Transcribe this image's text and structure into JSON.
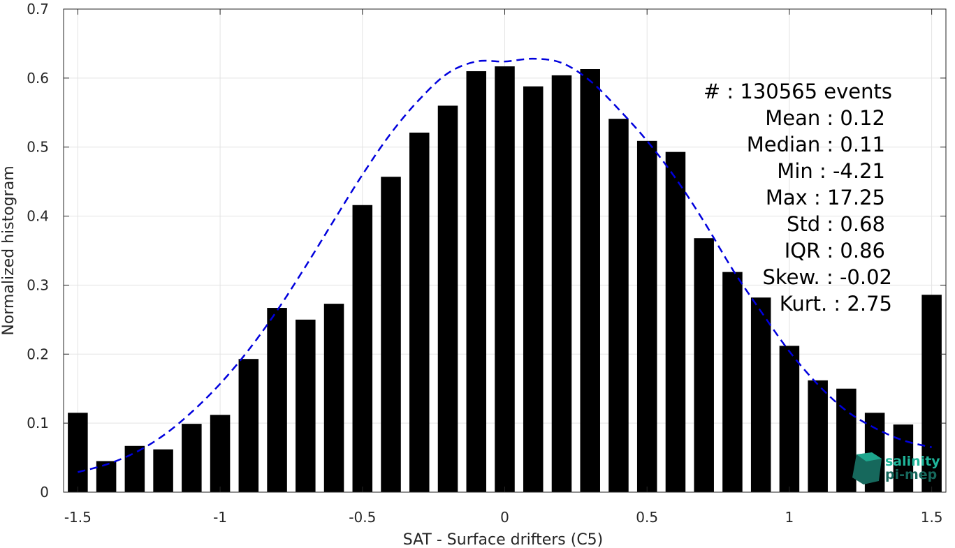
{
  "chart_data": {
    "type": "bar",
    "xlabel": "SAT - Surface drifters (C5)",
    "ylabel": "Normalized histogram",
    "xlim": [
      -1.55,
      1.55
    ],
    "ylim": [
      0,
      0.7
    ],
    "grid": true,
    "xticks": [
      -1.5,
      -1,
      -0.5,
      0,
      0.5,
      1,
      1.5
    ],
    "xtick_labels": [
      "-1.5",
      "-1",
      "-0.5",
      "0",
      "0.5",
      "1",
      "1.5"
    ],
    "yticks": [
      0,
      0.1,
      0.2,
      0.3,
      0.4,
      0.5,
      0.6,
      0.7
    ],
    "ytick_labels": [
      "0",
      "0.1",
      "0.2",
      "0.3",
      "0.4",
      "0.5",
      "0.6",
      "0.7"
    ],
    "bar_width": 0.07,
    "x": [
      -1.5,
      -1.4,
      -1.3,
      -1.2,
      -1.1,
      -1.0,
      -0.9,
      -0.8,
      -0.7,
      -0.6,
      -0.5,
      -0.4,
      -0.3,
      -0.2,
      -0.1,
      0.0,
      0.1,
      0.2,
      0.3,
      0.4,
      0.5,
      0.6,
      0.7,
      0.8,
      0.9,
      1.0,
      1.1,
      1.2,
      1.3,
      1.4,
      1.5
    ],
    "values": [
      0.115,
      0.045,
      0.067,
      0.062,
      0.099,
      0.112,
      0.193,
      0.267,
      0.25,
      0.273,
      0.416,
      0.457,
      0.521,
      0.56,
      0.61,
      0.617,
      0.588,
      0.604,
      0.613,
      0.541,
      0.509,
      0.493,
      0.368,
      0.319,
      0.282,
      0.212,
      0.162,
      0.15,
      0.115,
      0.098,
      0.286
    ],
    "bar_color": "#000000",
    "fit_curve": {
      "style": "dashed",
      "color": "#0000dd",
      "mean": 0.12,
      "std": 0.68,
      "x": [
        -1.5,
        -1.4,
        -1.3,
        -1.2,
        -1.1,
        -1.0,
        -0.9,
        -0.8,
        -0.7,
        -0.6,
        -0.5,
        -0.4,
        -0.3,
        -0.2,
        -0.1,
        0.0,
        0.1,
        0.2,
        0.3,
        0.4,
        0.5,
        0.6,
        0.7,
        0.8,
        0.9,
        1.0,
        1.1,
        1.2,
        1.3,
        1.4,
        1.5
      ],
      "y": [
        0.029,
        0.04,
        0.057,
        0.082,
        0.116,
        0.157,
        0.206,
        0.263,
        0.327,
        0.394,
        0.46,
        0.52,
        0.569,
        0.607,
        0.624,
        0.624,
        0.628,
        0.622,
        0.596,
        0.555,
        0.509,
        0.455,
        0.392,
        0.323,
        0.262,
        0.204,
        0.156,
        0.118,
        0.093,
        0.075,
        0.065
      ]
    },
    "annotations": [
      {
        "label": "#  : 130565 events"
      },
      {
        "label": "Mean : 0.12"
      },
      {
        "label": "Median : 0.11"
      },
      {
        "label": "Min : -4.21"
      },
      {
        "label": "Max : 17.25"
      },
      {
        "label": "Std : 0.68"
      },
      {
        "label": "IQR : 0.86"
      },
      {
        "label": "Skew. : -0.02"
      },
      {
        "label": "Kurt. : 2.75"
      }
    ]
  },
  "logo": {
    "line1": "salinity",
    "line2": "pi-mep",
    "color_dark": "#16685c",
    "color_light": "#1fb59a"
  }
}
